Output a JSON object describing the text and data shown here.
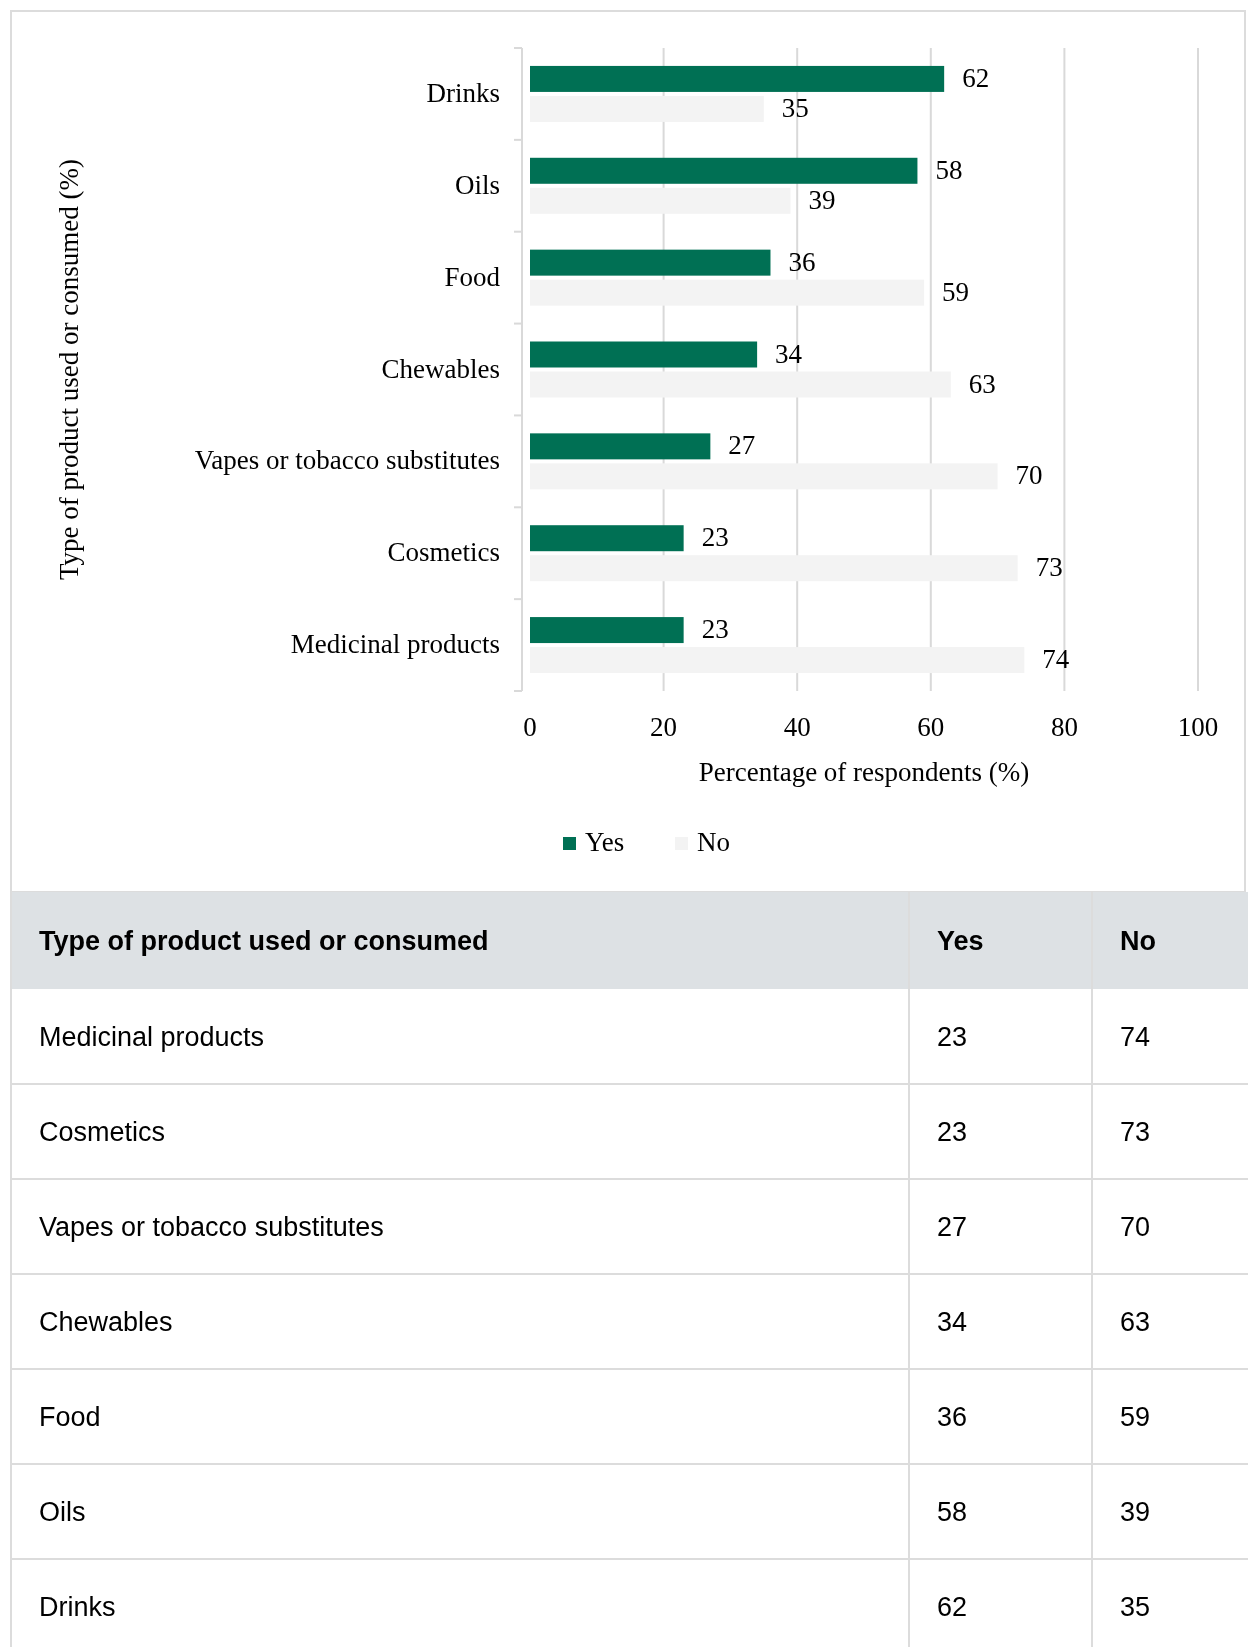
{
  "chart_data": [
    {
      "type": "bar",
      "orientation": "horizontal",
      "xlabel": "Percentage of respondents (%)",
      "ylabel": "Type of product used or consumed (%)",
      "categories": [
        "Drinks",
        "Oils",
        "Food",
        "Chewables",
        "Vapes or tobacco substitutes",
        "Cosmetics",
        "Medicinal products"
      ],
      "series": [
        {
          "name": "Yes",
          "color": "#007054",
          "values": [
            62,
            58,
            36,
            34,
            27,
            23,
            23
          ]
        },
        {
          "name": "No",
          "color": "#f3f3f3",
          "values": [
            35,
            39,
            59,
            63,
            70,
            73,
            74
          ]
        }
      ],
      "xlim": [
        0,
        100
      ],
      "xticks": [
        0,
        20,
        40,
        60,
        80,
        100
      ],
      "grid": "x",
      "legend": "bottom",
      "data_labels": true
    },
    {
      "type": "other",
      "data_labels": true,
      "annotations": [
        "Type of product used or consumed"
      ],
      "categories": [
        "Medicinal products",
        "Cosmetics",
        "Vapes or tobacco substitutes",
        "Chewables",
        "Food",
        "Oils",
        "Drinks"
      ],
      "series": [
        {
          "name": "Yes",
          "values": [
            23,
            23,
            27,
            34,
            36,
            58,
            62
          ]
        },
        {
          "name": "No",
          "values": [
            74,
            73,
            70,
            63,
            59,
            39,
            35
          ]
        }
      ]
    }
  ]
}
